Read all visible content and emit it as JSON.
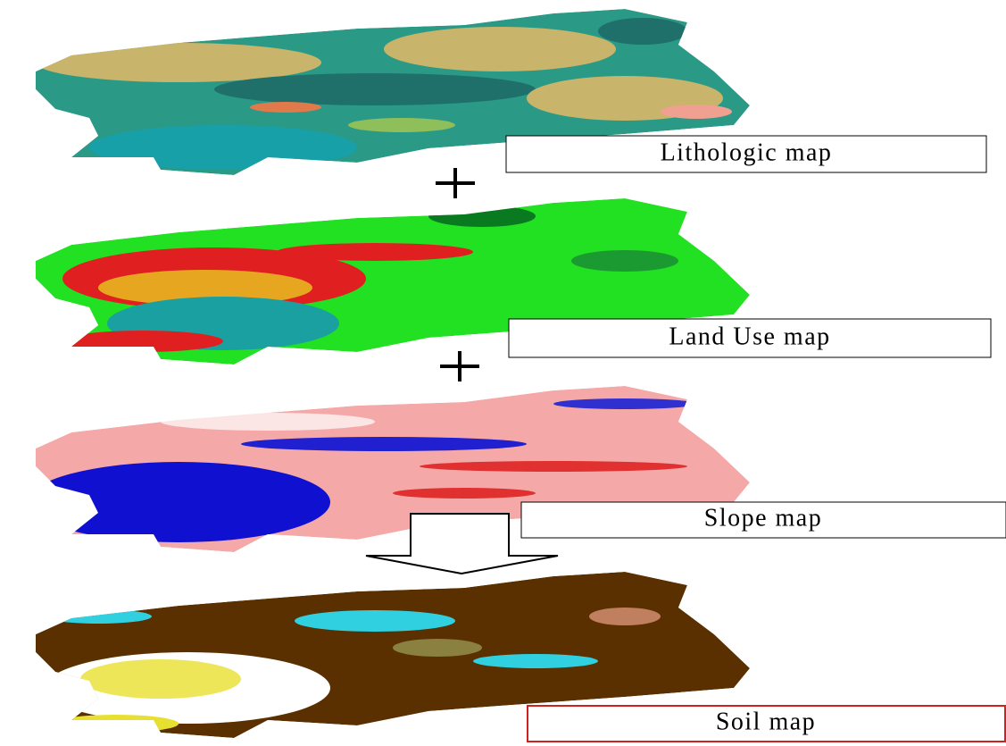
{
  "panels": [
    {
      "label": "Lithologic map"
    },
    {
      "label": "Land Use map"
    },
    {
      "label": "Slope map"
    },
    {
      "label": "Soil map"
    }
  ]
}
